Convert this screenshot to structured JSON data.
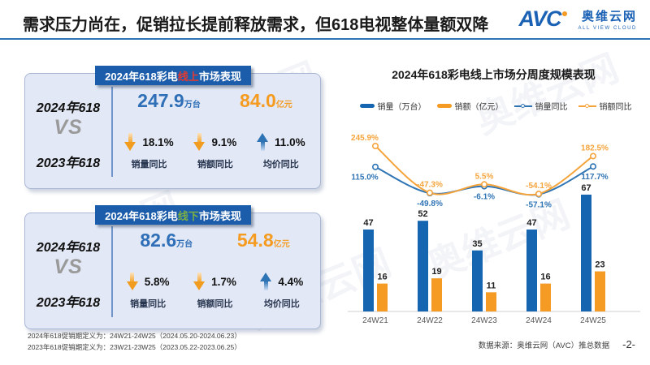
{
  "header": {
    "title": "需求压力尚在，促销拉长提前释放需求，但618电视整体量额双降",
    "logo": {
      "abbr": "AVC",
      "name_cn": "奥维云网",
      "name_en": "ALL VIEW CLOUD"
    }
  },
  "panels": [
    {
      "header": {
        "prefix": "2024年618彩电",
        "channel": "线上",
        "suffix": "市场表现",
        "channel_color": "#e8392e"
      },
      "compare": {
        "top": "2024年618",
        "vs": "VS",
        "bottom": "2023年618"
      },
      "volume": {
        "value": "247.9",
        "unit": "万台"
      },
      "amount": {
        "value": "84.0",
        "unit": "亿元"
      },
      "metrics": [
        {
          "direction": "down",
          "value": "18.1%",
          "label": "销量同比"
        },
        {
          "direction": "down",
          "value": "9.1%",
          "label": "销额同比"
        },
        {
          "direction": "up",
          "value": "11.0%",
          "label": "均价同比"
        }
      ]
    },
    {
      "header": {
        "prefix": "2024年618彩电",
        "channel": "线下",
        "suffix": "市场表现",
        "channel_color": "#7cb043"
      },
      "compare": {
        "top": "2024年618",
        "vs": "VS",
        "bottom": "2023年618"
      },
      "volume": {
        "value": "82.6",
        "unit": "万台"
      },
      "amount": {
        "value": "54.8",
        "unit": "亿元"
      },
      "metrics": [
        {
          "direction": "down",
          "value": "5.8%",
          "label": "销量同比"
        },
        {
          "direction": "down",
          "value": "1.7%",
          "label": "销额同比"
        },
        {
          "direction": "up",
          "value": "4.4%",
          "label": "均价同比"
        }
      ]
    }
  ],
  "chart_data": {
    "type": "bar+line",
    "title": "2024年618彩电线上市场分周度规模表现",
    "categories": [
      "24W21",
      "24W22",
      "24W23",
      "24W24",
      "24W25"
    ],
    "series": [
      {
        "name": "销量（万台）",
        "type": "bar",
        "color": "#1565b0",
        "values": [
          47,
          52,
          35,
          47,
          67
        ]
      },
      {
        "name": "销额（亿元）",
        "type": "bar",
        "color": "#f59a23",
        "values": [
          16,
          19,
          11,
          16,
          23
        ]
      },
      {
        "name": "销量同比",
        "type": "line",
        "color": "#2e74b5",
        "values": [
          115.0,
          -49.8,
          -6.1,
          -57.1,
          117.7
        ],
        "labels": [
          "115.0%",
          "-49.8%",
          "-6.1%",
          "-57.1%",
          "117.7%"
        ]
      },
      {
        "name": "销额同比",
        "type": "line",
        "color": "#f5a43c",
        "values": [
          245.9,
          -47.3,
          5.5,
          -54.1,
          182.5
        ],
        "labels": [
          "245.9%",
          "-47.3%",
          "5.5%",
          "-54.1%",
          "182.5%"
        ]
      }
    ],
    "legend_position": "top",
    "grid": false,
    "y_axis_shown": false
  },
  "footnotes": [
    "2024年618促销期定义为：24W21-24W25（2024.05.20-2024.06.23）",
    "2023年618促销期定义为：23W21-23W25（2023.05.22-2023.06.25）"
  ],
  "footer": {
    "source": "数据来源：奥维云网（AVC）推总数据",
    "page": "-2-"
  },
  "watermark": "奥维云网"
}
